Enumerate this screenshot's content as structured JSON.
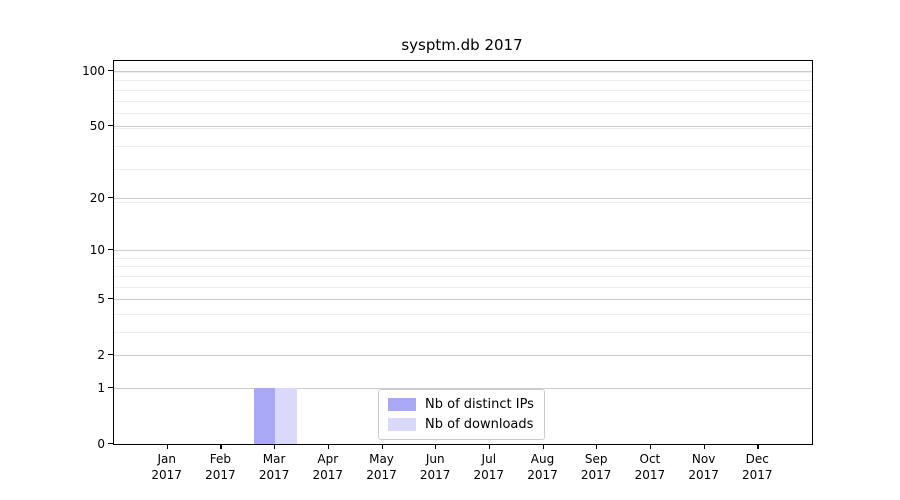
{
  "chart_data": {
    "type": "bar",
    "title": "sysptm.db 2017",
    "categories": [
      {
        "label": "Jan",
        "sublabel": "2017"
      },
      {
        "label": "Feb",
        "sublabel": "2017"
      },
      {
        "label": "Mar",
        "sublabel": "2017"
      },
      {
        "label": "Apr",
        "sublabel": "2017"
      },
      {
        "label": "May",
        "sublabel": "2017"
      },
      {
        "label": "Jun",
        "sublabel": "2017"
      },
      {
        "label": "Jul",
        "sublabel": "2017"
      },
      {
        "label": "Aug",
        "sublabel": "2017"
      },
      {
        "label": "Sep",
        "sublabel": "2017"
      },
      {
        "label": "Oct",
        "sublabel": "2017"
      },
      {
        "label": "Nov",
        "sublabel": "2017"
      },
      {
        "label": "Dec",
        "sublabel": "2017"
      }
    ],
    "series": [
      {
        "name": "Nb of distinct IPs",
        "color": "#a8a8f6",
        "values": [
          0,
          0,
          1,
          0,
          0,
          0,
          0,
          0,
          0,
          0,
          0,
          0
        ]
      },
      {
        "name": "Nb of downloads",
        "color": "#d9d9f9",
        "values": [
          0,
          0,
          1,
          0,
          0,
          0,
          0,
          0,
          0,
          0,
          0,
          0
        ]
      }
    ],
    "xlabel": "",
    "ylabel": "",
    "y_scale": "log10(1+v)",
    "y_ticks": [
      0,
      1,
      2,
      5,
      10,
      20,
      50,
      100
    ],
    "y_minor_gridline_values": [
      1,
      2,
      3,
      4,
      5,
      6,
      7,
      8,
      9,
      19,
      29,
      39,
      49,
      59,
      69,
      79,
      89,
      99
    ],
    "ylim": [
      0,
      113.3
    ],
    "xlim": [
      -1,
      12
    ],
    "bar_width": 0.4,
    "grid": "both",
    "legend_position": "lower center"
  },
  "colors": {
    "major_grid": "#cccccc",
    "minor_grid": "#ececec",
    "axis": "#000000",
    "background": "#ffffff"
  }
}
